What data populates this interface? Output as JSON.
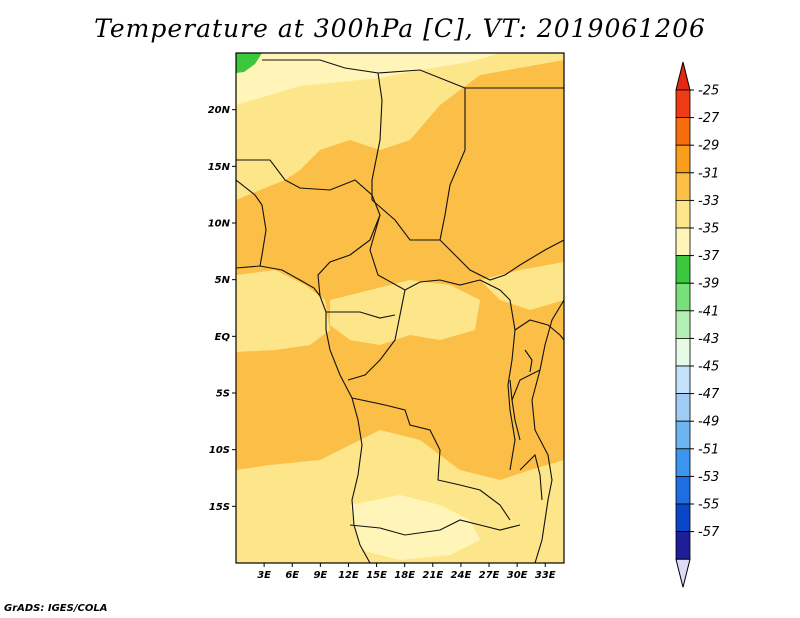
{
  "title": "Temperature at 300hPa [C], VT: 2019061206",
  "credit": "GrADS: IGES/COLA",
  "map": {
    "lon_range": [
      0,
      35
    ],
    "lat_range": [
      -20,
      25
    ],
    "lon_ticks": [
      "3E",
      "6E",
      "9E",
      "12E",
      "15E",
      "18E",
      "21E",
      "24E",
      "27E",
      "30E",
      "33E"
    ],
    "lat_ticks": [
      "20N",
      "15N",
      "10N",
      "5N",
      "EQ",
      "5S",
      "10S",
      "15S"
    ],
    "fill_colors": {
      "c33_31": "#fde68a",
      "c31_29": "#fbbf47",
      "c35_33": "#fff5b8",
      "c37_35": "#3cc83c"
    }
  },
  "colorbar": {
    "labels": [
      "-25",
      "-27",
      "-29",
      "-31",
      "-33",
      "-35",
      "-37",
      "-39",
      "-41",
      "-43",
      "-45",
      "-47",
      "-49",
      "-51",
      "-53",
      "-55",
      "-57"
    ],
    "colors": [
      "#ef3b15",
      "#f76d0e",
      "#f99e1a",
      "#fbbf47",
      "#fde68a",
      "#fff5b8",
      "#3cc83c",
      "#78e078",
      "#b4f0b4",
      "#e6fae6",
      "#c3e1fa",
      "#a0ccf4",
      "#6eb4f0",
      "#3c96f0",
      "#1e6ee1",
      "#0a46c8",
      "#1e1e96"
    ],
    "top_color": "#e52814",
    "bottom_color": "#dcdcf8"
  }
}
